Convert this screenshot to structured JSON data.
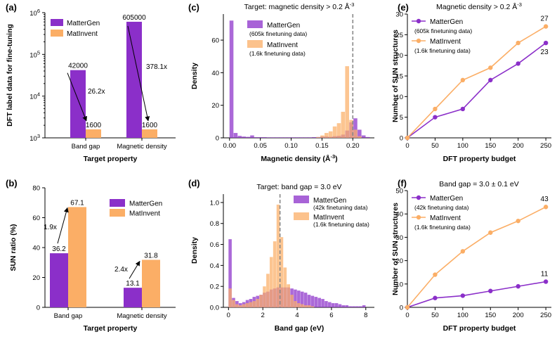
{
  "colors": {
    "mattergen": "#8b2fc9",
    "matinvent": "#fbae66",
    "overlap": "#d04a3a",
    "dashed": "#888888"
  },
  "chart_data": [
    {
      "id": "a",
      "panel_label": "(a)",
      "type": "bar",
      "title": "",
      "xlabel": "Target property",
      "ylabel": "DFT label data for fine-tuning",
      "y_scale": "log",
      "ylim": [
        1000,
        1000000
      ],
      "yticks": [
        {
          "value": 1000,
          "label_base": "10",
          "label_exp": "3"
        },
        {
          "value": 10000,
          "label_base": "10",
          "label_exp": "4"
        },
        {
          "value": 100000,
          "label_base": "10",
          "label_exp": "5"
        },
        {
          "value": 1000000,
          "label_base": "10",
          "label_exp": "6"
        }
      ],
      "categories": [
        "Band gap",
        "Magnetic density"
      ],
      "series": [
        {
          "name": "MatterGen",
          "values": [
            42000,
            605000
          ],
          "labels": [
            "42000",
            "605000"
          ]
        },
        {
          "name": "MatInvent",
          "values": [
            1600,
            1600
          ],
          "labels": [
            "1600",
            "1600"
          ]
        }
      ],
      "annotations": [
        "26.2x",
        "378.1x"
      ],
      "legend_position": "top-left"
    },
    {
      "id": "b",
      "panel_label": "(b)",
      "type": "bar",
      "title": "",
      "xlabel": "Target property",
      "ylabel": "SUN ratio (%)",
      "ylim": [
        0,
        80
      ],
      "yticks": [
        0,
        20,
        40,
        60,
        80
      ],
      "categories": [
        "Band gap",
        "Magnetic density"
      ],
      "series": [
        {
          "name": "MatterGen",
          "values": [
            36.2,
            13.1
          ],
          "labels": [
            "36.2",
            "13.1"
          ]
        },
        {
          "name": "MatInvent",
          "values": [
            67.1,
            31.8
          ],
          "labels": [
            "67.1",
            "31.8"
          ]
        }
      ],
      "annotations": [
        "1.9x",
        "2.4x"
      ],
      "legend_position": "top-right"
    },
    {
      "id": "c",
      "panel_label": "(c)",
      "type": "bar",
      "title_main": "Target: magnetic density > 0.2 Å",
      "title_exp": "-3",
      "xlabel_main": "Magnetic density (Å",
      "xlabel_exp": "-3",
      "xlabel_end": ")",
      "ylabel": "Density",
      "xlim": [
        -0.01,
        0.235
      ],
      "ylim": [
        0,
        76
      ],
      "xticks": [
        0.0,
        0.05,
        0.1,
        0.15,
        0.2
      ],
      "xtick_labels": [
        "0.00",
        "0.05",
        "0.10",
        "0.15",
        "0.20"
      ],
      "yticks": [
        0,
        20,
        40,
        60
      ],
      "bin_width": 0.0067,
      "reference_x": 0.2,
      "series": [
        {
          "name": "MatterGen",
          "note": "(605k finetuning data)",
          "bins": [
            [
              0.0,
              72
            ],
            [
              0.0067,
              3
            ],
            [
              0.0134,
              1.2
            ],
            [
              0.0201,
              0.8
            ],
            [
              0.0268,
              0.6
            ],
            [
              0.0335,
              1.5
            ],
            [
              0.0402,
              0.4
            ],
            [
              0.0469,
              0.4
            ],
            [
              0.0536,
              0.4
            ],
            [
              0.0603,
              0.3
            ],
            [
              0.067,
              0.3
            ],
            [
              0.0737,
              0.3
            ],
            [
              0.0804,
              0.3
            ],
            [
              0.0871,
              0.3
            ],
            [
              0.0938,
              0.3
            ],
            [
              0.1005,
              0.3
            ],
            [
              0.1072,
              0.3
            ],
            [
              0.1139,
              0.3
            ],
            [
              0.1206,
              0.3
            ],
            [
              0.1273,
              0.3
            ],
            [
              0.134,
              0.4
            ],
            [
              0.1407,
              0.5
            ],
            [
              0.1474,
              0.8
            ],
            [
              0.1541,
              0.8
            ],
            [
              0.1608,
              0.6
            ],
            [
              0.1675,
              1.0
            ],
            [
              0.1742,
              1.2
            ],
            [
              0.1809,
              2.0
            ],
            [
              0.1876,
              4.5
            ],
            [
              0.1943,
              9.5
            ],
            [
              0.201,
              12
            ],
            [
              0.2077,
              5
            ],
            [
              0.2144,
              1.5
            ],
            [
              0.2211,
              0.5
            ]
          ]
        },
        {
          "name": "MatInvent",
          "note": "(1.6k finetuning data)",
          "bins": [
            [
              0.1407,
              0.5
            ],
            [
              0.1474,
              1.5
            ],
            [
              0.1541,
              3
            ],
            [
              0.1608,
              4
            ],
            [
              0.1675,
              7
            ],
            [
              0.1742,
              9
            ],
            [
              0.1809,
              16
            ],
            [
              0.1876,
              44
            ],
            [
              0.1943,
              11
            ],
            [
              0.201,
              5
            ],
            [
              0.2077,
              1
            ]
          ]
        }
      ],
      "legend_position": "top-center"
    },
    {
      "id": "d",
      "panel_label": "(d)",
      "type": "bar",
      "title": "Target: band gap = 3.0 eV",
      "xlabel": "Band gap (eV)",
      "ylabel": "Density",
      "xlim": [
        -0.3,
        8.5
      ],
      "ylim": [
        0,
        1.08
      ],
      "xticks": [
        0,
        2,
        4,
        6,
        8
      ],
      "yticks": [
        0.0,
        0.2,
        0.4,
        0.6,
        0.8,
        1.0
      ],
      "ytick_labels": [
        "0.0",
        "0.2",
        "0.4",
        "0.6",
        "0.8",
        "1.0"
      ],
      "bin_width": 0.2,
      "reference_x": 3.0,
      "series": [
        {
          "name": "MatterGen",
          "note": "(42k finetuning data)",
          "bins": [
            [
              0.0,
              0.65
            ],
            [
              0.2,
              0.09
            ],
            [
              0.4,
              0.06
            ],
            [
              0.6,
              0.04
            ],
            [
              0.8,
              0.05
            ],
            [
              1.0,
              0.07
            ],
            [
              1.2,
              0.08
            ],
            [
              1.4,
              0.1
            ],
            [
              1.6,
              0.11
            ],
            [
              1.8,
              0.12
            ],
            [
              2.0,
              0.14
            ],
            [
              2.2,
              0.15
            ],
            [
              2.4,
              0.17
            ],
            [
              2.6,
              0.18
            ],
            [
              2.8,
              0.19
            ],
            [
              3.0,
              0.19
            ],
            [
              3.2,
              0.19
            ],
            [
              3.4,
              0.19
            ],
            [
              3.6,
              0.18
            ],
            [
              3.8,
              0.17
            ],
            [
              4.0,
              0.16
            ],
            [
              4.2,
              0.15
            ],
            [
              4.4,
              0.14
            ],
            [
              4.6,
              0.12
            ],
            [
              4.8,
              0.11
            ],
            [
              5.0,
              0.1
            ],
            [
              5.2,
              0.09
            ],
            [
              5.4,
              0.08
            ],
            [
              5.6,
              0.06
            ],
            [
              5.8,
              0.05
            ],
            [
              6.0,
              0.04
            ],
            [
              6.2,
              0.04
            ],
            [
              6.4,
              0.03
            ],
            [
              6.6,
              0.02
            ],
            [
              6.8,
              0.02
            ],
            [
              7.0,
              0.01
            ],
            [
              7.2,
              0.01
            ],
            [
              7.4,
              0.01
            ],
            [
              7.6,
              0.01
            ],
            [
              7.8,
              0.02
            ]
          ]
        },
        {
          "name": "MatInvent",
          "note": "(1.6k finetuning data)",
          "bins": [
            [
              0.0,
              0.18
            ],
            [
              0.2,
              0.07
            ],
            [
              0.4,
              0.03
            ],
            [
              0.6,
              0.02
            ],
            [
              0.8,
              0.03
            ],
            [
              1.0,
              0.04
            ],
            [
              1.2,
              0.05
            ],
            [
              1.4,
              0.06
            ],
            [
              1.6,
              0.08
            ],
            [
              1.8,
              0.12
            ],
            [
              2.0,
              0.2
            ],
            [
              2.2,
              0.32
            ],
            [
              2.4,
              0.48
            ],
            [
              2.6,
              0.63
            ],
            [
              2.8,
              0.98
            ],
            [
              3.0,
              0.67
            ],
            [
              3.2,
              0.38
            ],
            [
              3.4,
              0.22
            ],
            [
              3.6,
              0.12
            ],
            [
              3.8,
              0.06
            ],
            [
              4.0,
              0.04
            ],
            [
              4.2,
              0.03
            ],
            [
              4.4,
              0.02
            ],
            [
              4.6,
              0.02
            ],
            [
              4.8,
              0.01
            ]
          ]
        }
      ],
      "legend_position": "top-right"
    },
    {
      "id": "e",
      "panel_label": "(e)",
      "type": "line",
      "title_main": "Magnetic density > 0.2 Å",
      "title_exp": "-3",
      "xlabel": "DFT property budget",
      "ylabel": "Number of SUN structures",
      "xlim": [
        0,
        260
      ],
      "ylim": [
        0,
        30
      ],
      "xticks": [
        0,
        50,
        100,
        150,
        200,
        250
      ],
      "yticks": [
        0,
        5,
        10,
        15,
        20,
        25,
        30
      ],
      "x": [
        0,
        50,
        100,
        150,
        200,
        250
      ],
      "series": [
        {
          "name": "MatterGen",
          "note": "(605k finetuning data)",
          "values": [
            0,
            5,
            7,
            14,
            18,
            23
          ],
          "end_label": "23"
        },
        {
          "name": "MatInvent",
          "note": "(1.6k finetuning data)",
          "values": [
            0,
            7,
            14,
            17,
            23,
            27
          ],
          "end_label": "27"
        }
      ],
      "legend_position": "top-left"
    },
    {
      "id": "f",
      "panel_label": "(f)",
      "type": "line",
      "title": "Band gap = 3.0 ± 0.1 eV",
      "xlabel": "DFT property budget",
      "ylabel": "Number of SUN structures",
      "xlim": [
        0,
        260
      ],
      "ylim": [
        0,
        50
      ],
      "xticks": [
        0,
        50,
        100,
        150,
        200,
        250
      ],
      "yticks": [
        0,
        10,
        20,
        30,
        40,
        50
      ],
      "x": [
        0,
        50,
        100,
        150,
        200,
        250
      ],
      "series": [
        {
          "name": "MatterGen",
          "note": "(42k finetuning data)",
          "values": [
            0,
            4,
            5,
            7,
            9,
            11
          ],
          "end_label": "11"
        },
        {
          "name": "MatInvent",
          "note": "(1.6k finetuning data)",
          "values": [
            0,
            14,
            24,
            32,
            37,
            43
          ],
          "end_label": "43"
        }
      ],
      "legend_position": "top-left"
    }
  ]
}
